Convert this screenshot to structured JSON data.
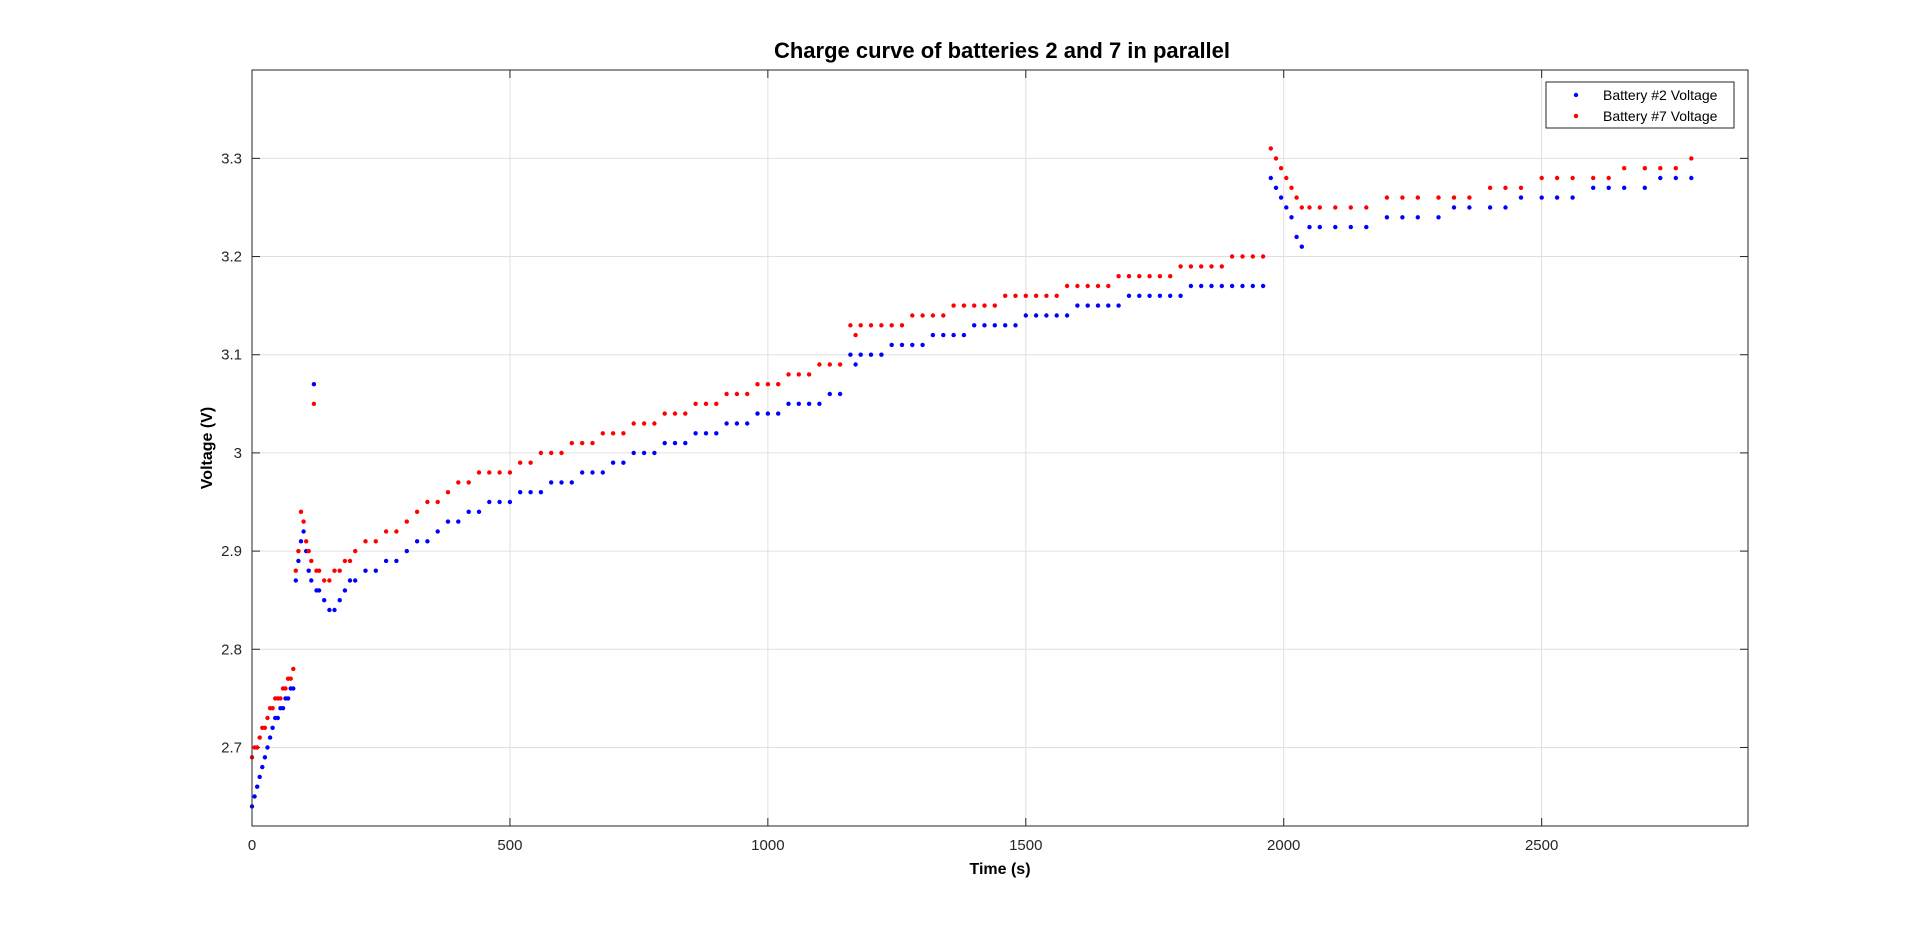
{
  "chart_data": {
    "type": "scatter",
    "title": "Charge curve of batteries 2 and 7 in parallel",
    "xlabel": "Time (s)",
    "ylabel": "Voltage (V)",
    "xlim": [
      0,
      2900
    ],
    "ylim": [
      2.62,
      3.39
    ],
    "xticks": [
      0,
      500,
      1000,
      1500,
      2000,
      2500
    ],
    "yticks": [
      2.7,
      2.8,
      2.9,
      3.0,
      3.1,
      3.2,
      3.3
    ],
    "xtick_labels": [
      "0",
      "500",
      "1000",
      "1500",
      "2000",
      "2500"
    ],
    "ytick_labels": [
      "2.7",
      "2.8",
      "2.9",
      "3",
      "3.1",
      "3.2",
      "3.3"
    ],
    "grid": true,
    "legend_position": "top-right",
    "series": [
      {
        "name": "Battery #2 Voltage",
        "color": "#0000ff",
        "x": [
          0,
          5,
          10,
          15,
          20,
          25,
          30,
          35,
          40,
          45,
          50,
          55,
          60,
          65,
          70,
          75,
          80,
          85,
          90,
          95,
          100,
          105,
          110,
          115,
          120,
          125,
          130,
          140,
          150,
          160,
          170,
          180,
          190,
          200,
          220,
          240,
          260,
          280,
          300,
          320,
          340,
          360,
          380,
          400,
          420,
          440,
          460,
          480,
          500,
          520,
          540,
          560,
          580,
          600,
          620,
          640,
          660,
          680,
          700,
          720,
          740,
          760,
          780,
          800,
          820,
          840,
          860,
          880,
          900,
          920,
          940,
          960,
          980,
          1000,
          1020,
          1040,
          1060,
          1080,
          1100,
          1120,
          1140,
          1160,
          1170,
          1180,
          1200,
          1220,
          1240,
          1260,
          1280,
          1300,
          1320,
          1340,
          1360,
          1380,
          1400,
          1420,
          1440,
          1460,
          1480,
          1500,
          1520,
          1540,
          1560,
          1580,
          1600,
          1620,
          1640,
          1660,
          1680,
          1700,
          1720,
          1740,
          1760,
          1780,
          1800,
          1820,
          1840,
          1860,
          1880,
          1900,
          1920,
          1940,
          1960,
          1975,
          1985,
          1995,
          2005,
          2015,
          2025,
          2035,
          2050,
          2070,
          2100,
          2130,
          2160,
          2200,
          2230,
          2260,
          2300,
          2330,
          2360,
          2400,
          2430,
          2460,
          2500,
          2530,
          2560,
          2600,
          2630,
          2660,
          2700,
          2730,
          2760,
          2790
        ],
        "y": [
          2.64,
          2.65,
          2.66,
          2.67,
          2.68,
          2.69,
          2.7,
          2.71,
          2.72,
          2.73,
          2.73,
          2.74,
          2.74,
          2.75,
          2.75,
          2.76,
          2.76,
          2.87,
          2.89,
          2.91,
          2.92,
          2.9,
          2.88,
          2.87,
          3.07,
          2.86,
          2.86,
          2.85,
          2.84,
          2.84,
          2.85,
          2.86,
          2.87,
          2.87,
          2.88,
          2.88,
          2.89,
          2.89,
          2.9,
          2.91,
          2.91,
          2.92,
          2.93,
          2.93,
          2.94,
          2.94,
          2.95,
          2.95,
          2.95,
          2.96,
          2.96,
          2.96,
          2.97,
          2.97,
          2.97,
          2.98,
          2.98,
          2.98,
          2.99,
          2.99,
          3.0,
          3.0,
          3.0,
          3.01,
          3.01,
          3.01,
          3.02,
          3.02,
          3.02,
          3.03,
          3.03,
          3.03,
          3.04,
          3.04,
          3.04,
          3.05,
          3.05,
          3.05,
          3.05,
          3.06,
          3.06,
          3.1,
          3.09,
          3.1,
          3.1,
          3.1,
          3.11,
          3.11,
          3.11,
          3.11,
          3.12,
          3.12,
          3.12,
          3.12,
          3.13,
          3.13,
          3.13,
          3.13,
          3.13,
          3.14,
          3.14,
          3.14,
          3.14,
          3.14,
          3.15,
          3.15,
          3.15,
          3.15,
          3.15,
          3.16,
          3.16,
          3.16,
          3.16,
          3.16,
          3.16,
          3.17,
          3.17,
          3.17,
          3.17,
          3.17,
          3.17,
          3.17,
          3.17,
          3.28,
          3.27,
          3.26,
          3.25,
          3.24,
          3.22,
          3.21,
          3.23,
          3.23,
          3.23,
          3.23,
          3.23,
          3.24,
          3.24,
          3.24,
          3.24,
          3.25,
          3.25,
          3.25,
          3.25,
          3.26,
          3.26,
          3.26,
          3.26,
          3.27,
          3.27,
          3.27,
          3.27,
          3.28,
          3.28,
          3.28
        ]
      },
      {
        "name": "Battery #7 Voltage",
        "color": "#ff0000",
        "x": [
          0,
          5,
          10,
          15,
          20,
          25,
          30,
          35,
          40,
          45,
          50,
          55,
          60,
          65,
          70,
          75,
          80,
          85,
          90,
          95,
          100,
          105,
          110,
          115,
          120,
          125,
          130,
          140,
          150,
          160,
          170,
          180,
          190,
          200,
          220,
          240,
          260,
          280,
          300,
          320,
          340,
          360,
          380,
          400,
          420,
          440,
          460,
          480,
          500,
          520,
          540,
          560,
          580,
          600,
          620,
          640,
          660,
          680,
          700,
          720,
          740,
          760,
          780,
          800,
          820,
          840,
          860,
          880,
          900,
          920,
          940,
          960,
          980,
          1000,
          1020,
          1040,
          1060,
          1080,
          1100,
          1120,
          1140,
          1160,
          1170,
          1180,
          1200,
          1220,
          1240,
          1260,
          1280,
          1300,
          1320,
          1340,
          1360,
          1380,
          1400,
          1420,
          1440,
          1460,
          1480,
          1500,
          1520,
          1540,
          1560,
          1580,
          1600,
          1620,
          1640,
          1660,
          1680,
          1700,
          1720,
          1740,
          1760,
          1780,
          1800,
          1820,
          1840,
          1860,
          1880,
          1900,
          1920,
          1940,
          1960,
          1975,
          1985,
          1995,
          2005,
          2015,
          2025,
          2035,
          2050,
          2070,
          2100,
          2130,
          2160,
          2200,
          2230,
          2260,
          2300,
          2330,
          2360,
          2400,
          2430,
          2460,
          2500,
          2530,
          2560,
          2600,
          2630,
          2660,
          2700,
          2730,
          2760,
          2790
        ],
        "y": [
          2.69,
          2.7,
          2.7,
          2.71,
          2.72,
          2.72,
          2.73,
          2.74,
          2.74,
          2.75,
          2.75,
          2.75,
          2.76,
          2.76,
          2.77,
          2.77,
          2.78,
          2.88,
          2.9,
          2.94,
          2.93,
          2.91,
          2.9,
          2.89,
          3.05,
          2.88,
          2.88,
          2.87,
          2.87,
          2.88,
          2.88,
          2.89,
          2.89,
          2.9,
          2.91,
          2.91,
          2.92,
          2.92,
          2.93,
          2.94,
          2.95,
          2.95,
          2.96,
          2.97,
          2.97,
          2.98,
          2.98,
          2.98,
          2.98,
          2.99,
          2.99,
          3.0,
          3.0,
          3.0,
          3.01,
          3.01,
          3.01,
          3.02,
          3.02,
          3.02,
          3.03,
          3.03,
          3.03,
          3.04,
          3.04,
          3.04,
          3.05,
          3.05,
          3.05,
          3.06,
          3.06,
          3.06,
          3.07,
          3.07,
          3.07,
          3.08,
          3.08,
          3.08,
          3.09,
          3.09,
          3.09,
          3.13,
          3.12,
          3.13,
          3.13,
          3.13,
          3.13,
          3.13,
          3.14,
          3.14,
          3.14,
          3.14,
          3.15,
          3.15,
          3.15,
          3.15,
          3.15,
          3.16,
          3.16,
          3.16,
          3.16,
          3.16,
          3.16,
          3.17,
          3.17,
          3.17,
          3.17,
          3.17,
          3.18,
          3.18,
          3.18,
          3.18,
          3.18,
          3.18,
          3.19,
          3.19,
          3.19,
          3.19,
          3.19,
          3.2,
          3.2,
          3.2,
          3.2,
          3.31,
          3.3,
          3.29,
          3.28,
          3.27,
          3.26,
          3.25,
          3.25,
          3.25,
          3.25,
          3.25,
          3.25,
          3.26,
          3.26,
          3.26,
          3.26,
          3.26,
          3.26,
          3.27,
          3.27,
          3.27,
          3.28,
          3.28,
          3.28,
          3.28,
          3.28,
          3.29,
          3.29,
          3.29,
          3.29,
          3.3
        ]
      }
    ]
  }
}
